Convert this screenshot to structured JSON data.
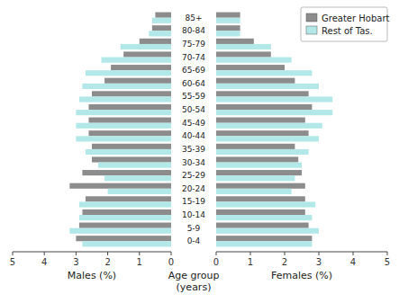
{
  "chart_data": [
    {
      "type": "bar",
      "orientation": "horizontal",
      "xlabel": "Males (%)",
      "ylabel": "Age group\n(years)",
      "categories": [
        "0-4",
        "5-9",
        "10-14",
        "15-19",
        "20-24",
        "25-29",
        "30-34",
        "35-39",
        "40-44",
        "45-49",
        "50-54",
        "55-59",
        "60-64",
        "65-69",
        "70-74",
        "75-79",
        "80-84",
        "85+"
      ],
      "series": [
        {
          "color": "#8c8c8c",
          "values": [
            3.0,
            2.9,
            2.8,
            2.7,
            3.2,
            2.8,
            2.5,
            2.5,
            2.6,
            2.6,
            2.6,
            2.5,
            2.1,
            1.9,
            1.5,
            1.0,
            0.6,
            0.5
          ]
        },
        {
          "color": "#b2e8e8",
          "values": [
            2.8,
            3.2,
            2.9,
            2.9,
            2.0,
            2.1,
            2.3,
            2.7,
            3.0,
            3.0,
            3.0,
            2.9,
            2.8,
            2.7,
            2.2,
            1.6,
            0.7,
            0.6
          ]
        }
      ],
      "xlim": [
        5,
        0
      ],
      "xticks": [
        0,
        1,
        2,
        3,
        4,
        5
      ]
    },
    {
      "type": "bar",
      "orientation": "horizontal",
      "xlabel": "Females (%)",
      "categories": [
        "0-4",
        "5-9",
        "10-14",
        "15-19",
        "20-24",
        "25-29",
        "30-34",
        "35-39",
        "40-44",
        "45-49",
        "50-54",
        "55-59",
        "60-64",
        "65-69",
        "70-74",
        "75-79",
        "80-84",
        "85+"
      ],
      "series": [
        {
          "name": "Greater Hobart",
          "color": "#8c8c8c",
          "values": [
            2.8,
            2.7,
            2.6,
            2.6,
            2.6,
            2.5,
            2.4,
            2.3,
            2.7,
            2.6,
            2.8,
            2.7,
            2.3,
            2.0,
            1.6,
            1.1,
            0.7,
            0.7
          ]
        },
        {
          "name": "Rest of Tas.",
          "color": "#b2e8e8",
          "values": [
            2.8,
            3.0,
            2.8,
            2.9,
            2.2,
            2.3,
            2.5,
            2.7,
            3.0,
            3.1,
            3.4,
            3.4,
            3.0,
            2.8,
            2.2,
            1.6,
            0.7,
            0.7
          ]
        }
      ],
      "xlim": [
        0,
        5
      ],
      "xticks": [
        0,
        1,
        2,
        3,
        4,
        5
      ],
      "legend": "upper right"
    }
  ]
}
